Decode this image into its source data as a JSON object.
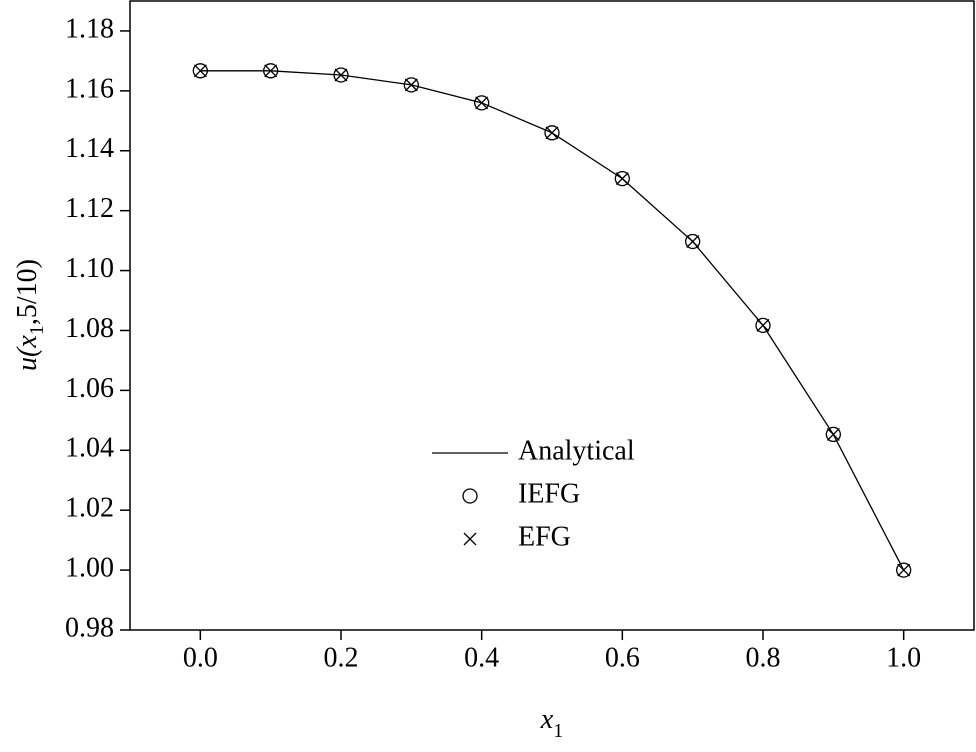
{
  "chart_data": {
    "type": "line",
    "x": [
      0.0,
      0.1,
      0.2,
      0.3,
      0.4,
      0.5,
      0.6,
      0.7,
      0.8,
      0.9,
      1.0
    ],
    "series": [
      {
        "name": "Analytical",
        "color": "#000000",
        "marker": "none",
        "values": [
          1.1667,
          1.1667,
          1.1653,
          1.162,
          1.156,
          1.146,
          1.1307,
          1.1097,
          1.0817,
          1.0453,
          1.0
        ]
      },
      {
        "name": "IEFG",
        "color": "#000000",
        "marker": "circle",
        "values": [
          1.1667,
          1.1667,
          1.1653,
          1.162,
          1.156,
          1.146,
          1.1307,
          1.1097,
          1.0817,
          1.0453,
          1.0
        ]
      },
      {
        "name": "EFG",
        "color": "#000000",
        "marker": "cross",
        "values": [
          1.1667,
          1.1667,
          1.1653,
          1.162,
          1.156,
          1.146,
          1.1307,
          1.1097,
          1.0817,
          1.0453,
          1.0
        ]
      }
    ],
    "xlim": [
      -0.1,
      1.1
    ],
    "ylim": [
      0.98,
      1.19
    ],
    "xticks": [
      {
        "value": 0,
        "label": "0.0"
      },
      0.2,
      0.4,
      0.6,
      0.8,
      {
        "value": 1,
        "label": "1.0"
      }
    ],
    "yticks": [
      0.98,
      {
        "value": 1,
        "label": "1.00"
      },
      1.02,
      1.04,
      1.06,
      1.08,
      {
        "value": 1.1,
        "label": "1.10"
      },
      1.12,
      1.14,
      1.16,
      1.18
    ],
    "xlabel": {
      "var": "x",
      "sub": "1"
    },
    "ylabel": {
      "func": "u(",
      "var": "x",
      "sub": "1",
      "rest": ",5/10)"
    },
    "grid": false,
    "legend": "center"
  }
}
